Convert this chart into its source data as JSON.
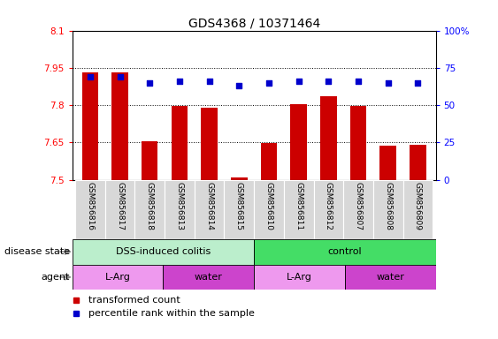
{
  "title": "GDS4368 / 10371464",
  "samples": [
    "GSM856816",
    "GSM856817",
    "GSM856818",
    "GSM856813",
    "GSM856814",
    "GSM856815",
    "GSM856810",
    "GSM856811",
    "GSM856812",
    "GSM856807",
    "GSM856808",
    "GSM856809"
  ],
  "red_values": [
    7.93,
    7.93,
    7.655,
    7.795,
    7.79,
    7.51,
    7.648,
    7.805,
    7.835,
    7.795,
    7.638,
    7.642
  ],
  "blue_values": [
    69,
    69,
    65,
    66,
    66,
    63,
    65,
    66,
    66,
    66,
    65,
    65
  ],
  "ylim_left": [
    7.5,
    8.1
  ],
  "ylim_right": [
    0,
    100
  ],
  "yticks_left": [
    7.5,
    7.65,
    7.8,
    7.95,
    8.1
  ],
  "yticks_right": [
    0,
    25,
    50,
    75,
    100
  ],
  "ytick_labels_left": [
    "7.5",
    "7.65",
    "7.8",
    "7.95",
    "8.1"
  ],
  "ytick_labels_right": [
    "0",
    "25",
    "50",
    "75",
    "100%"
  ],
  "hlines": [
    7.65,
    7.8,
    7.95
  ],
  "red_color": "#CC0000",
  "blue_color": "#0000CC",
  "bar_bottom": 7.5,
  "dss_color": "#BBEECC",
  "ctrl_color": "#44DD66",
  "agent_larg_color": "#EE99EE",
  "agent_water_color": "#CC44CC",
  "legend_red_label": "transformed count",
  "legend_blue_label": "percentile rank within the sample",
  "disease_state_label": "disease state",
  "agent_label": "agent",
  "sample_bg_color": "#D8D8D8",
  "sample_border_color": "#AAAAAA"
}
